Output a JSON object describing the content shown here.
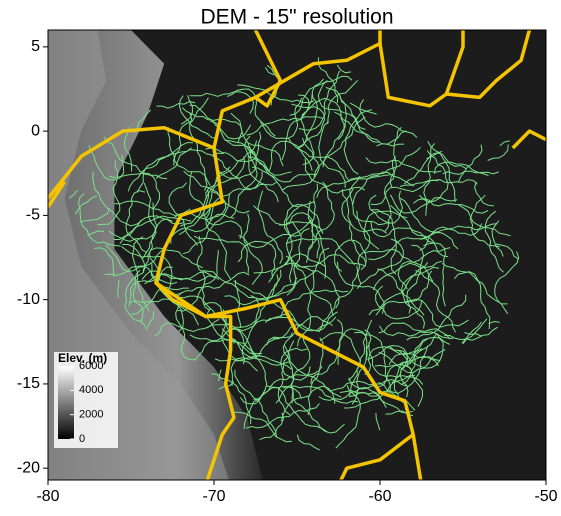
{
  "chart_data": {
    "type": "map",
    "title": "DEM - 15\" resolution",
    "xlim": [
      -80,
      -50
    ],
    "xticks": [
      -80,
      -70,
      -60,
      -50
    ],
    "ylim": [
      -20.7,
      6
    ],
    "yticks": [
      5,
      0,
      -5,
      -10,
      -15,
      -20
    ],
    "legend": {
      "title": "Elev. (m)",
      "range": [
        0,
        6000
      ],
      "ticks": [
        6000,
        4000,
        2000,
        0
      ]
    }
  }
}
